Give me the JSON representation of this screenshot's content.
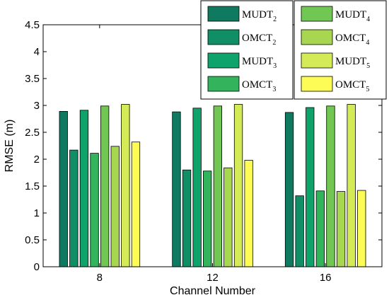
{
  "chart_data": {
    "type": "bar",
    "xlabel": "Channel Number",
    "ylabel": "RMSE (m)",
    "categories": [
      "8",
      "12",
      "16"
    ],
    "ylim": [
      0,
      4.5
    ],
    "yticks": [
      "0",
      "0.5",
      "1",
      "1.5",
      "2",
      "2.5",
      "3",
      "3.5",
      "4",
      "4.5"
    ],
    "grid": false,
    "legend_placement": "top-right",
    "series": [
      {
        "name": "MUDT",
        "sub": "2",
        "color": "#0f7a5f",
        "values": [
          2.89,
          2.88,
          2.87
        ]
      },
      {
        "name": "OMCT",
        "sub": "2",
        "color": "#108f66",
        "values": [
          2.17,
          1.8,
          1.32
        ]
      },
      {
        "name": "MUDT",
        "sub": "3",
        "color": "#0ea36a",
        "values": [
          2.91,
          2.95,
          2.96
        ]
      },
      {
        "name": "OMCT",
        "sub": "3",
        "color": "#33b45c",
        "values": [
          2.11,
          1.78,
          1.41
        ]
      },
      {
        "name": "MUDT",
        "sub": "4",
        "color": "#72c653",
        "values": [
          2.99,
          2.99,
          2.99
        ]
      },
      {
        "name": "OMCT",
        "sub": "4",
        "color": "#a9d650",
        "values": [
          2.24,
          1.84,
          1.4
        ]
      },
      {
        "name": "MUDT",
        "sub": "5",
        "color": "#d4ea57",
        "values": [
          3.02,
          3.02,
          3.02
        ]
      },
      {
        "name": "OMCT",
        "sub": "5",
        "color": "#fdfb56",
        "values": [
          2.32,
          1.98,
          1.42
        ]
      }
    ]
  }
}
